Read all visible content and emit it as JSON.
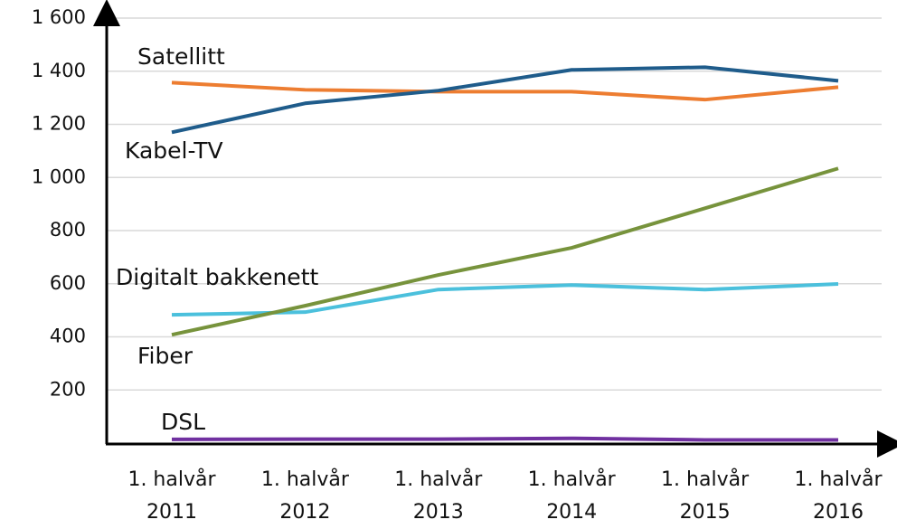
{
  "chart_data": {
    "type": "line",
    "categories": [
      "1. halvår 2011",
      "1. halvår 2012",
      "1. halvår 2013",
      "1. halvår 2014",
      "1. halvår 2015",
      "1. halvår 2016"
    ],
    "series": [
      {
        "name": "Satellitt",
        "color": "#ed7d31",
        "values": [
          1357,
          1330,
          1323,
          1323,
          1293,
          1340
        ]
      },
      {
        "name": "Kabel-TV",
        "color": "#1f5c8b",
        "values": [
          1170,
          1279,
          1327,
          1405,
          1415,
          1364
        ]
      },
      {
        "name": "Digitalt bakkenett",
        "color": "#4bc0dc",
        "values": [
          483,
          493,
          578,
          595,
          578,
          599
        ]
      },
      {
        "name": "Fiber",
        "color": "#77933c",
        "values": [
          408,
          517,
          633,
          735,
          884,
          1034
        ]
      },
      {
        "name": "DSL",
        "color": "#7030a0",
        "values": [
          14,
          15,
          15,
          18,
          12,
          12
        ]
      }
    ],
    "ylim": [
      0,
      1600
    ],
    "yticks": [
      {
        "value": 200,
        "label": "200"
      },
      {
        "value": 400,
        "label": "400"
      },
      {
        "value": 600,
        "label": "600"
      },
      {
        "value": 800,
        "label": "800"
      },
      {
        "value": 1000,
        "label": "1 000"
      },
      {
        "value": 1200,
        "label": "1 200"
      },
      {
        "value": 1400,
        "label": "1 400"
      },
      {
        "value": 1600,
        "label": "1 600"
      }
    ],
    "grid": true
  }
}
